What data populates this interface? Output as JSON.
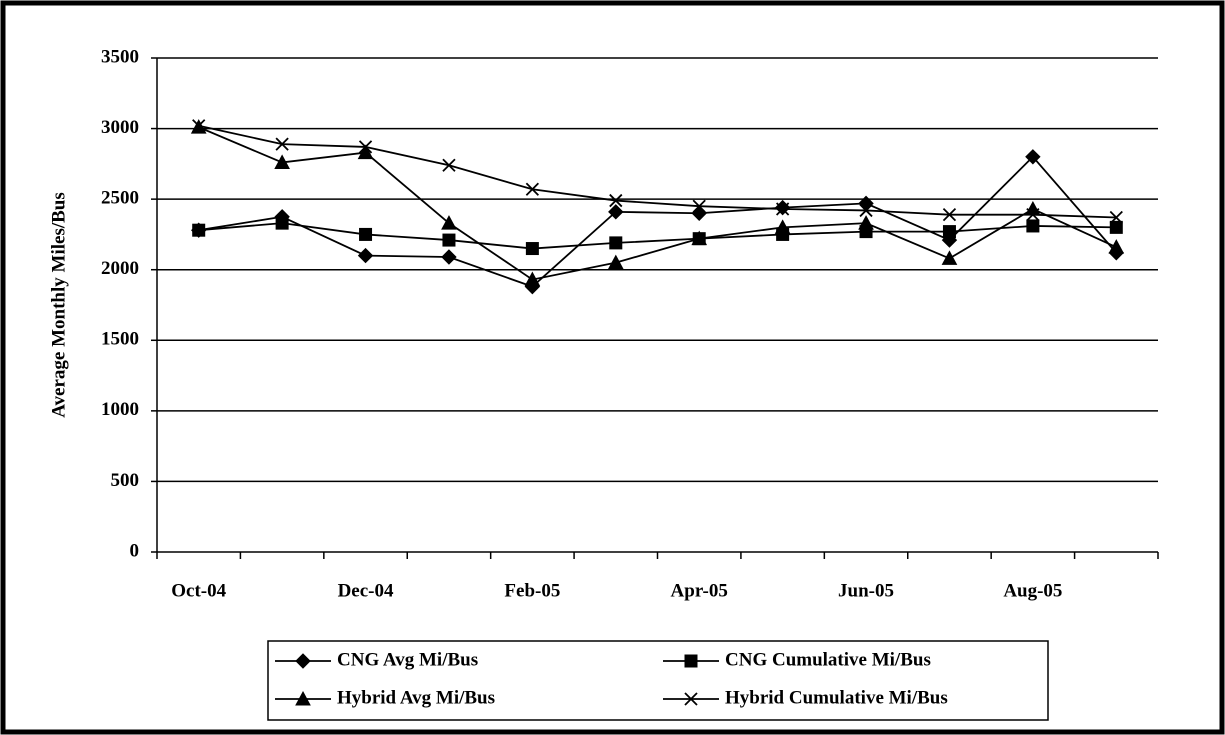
{
  "chart_data": {
    "type": "line",
    "y_label": "Average Monthly Miles/Bus",
    "categories": [
      "Oct-04",
      null,
      "Dec-04",
      null,
      "Feb-05",
      null,
      "Apr-05",
      null,
      "Jun-05",
      null,
      "Aug-05",
      null
    ],
    "ylim": [
      0,
      3500
    ],
    "yticks": [
      0,
      500,
      1000,
      1500,
      2000,
      2500,
      3000,
      3500
    ],
    "grid": true,
    "series": [
      {
        "name": "CNG Avg Mi/Bus",
        "color": "#000000",
        "marker": "diamond",
        "values": [
          2280,
          2375,
          2100,
          2090,
          1880,
          2410,
          2400,
          2440,
          2470,
          2210,
          2800,
          2120
        ]
      },
      {
        "name": "CNG Cumulative Mi/Bus",
        "color": "#000000",
        "marker": "square",
        "values": [
          2280,
          2330,
          2250,
          2210,
          2150,
          2190,
          2220,
          2250,
          2270,
          2270,
          2310,
          2300
        ]
      },
      {
        "name": "Hybrid Avg Mi/Bus",
        "color": "#000000",
        "marker": "triangle",
        "values": [
          3010,
          2760,
          2830,
          2330,
          1930,
          2050,
          2220,
          2300,
          2330,
          2080,
          2430,
          2160
        ]
      },
      {
        "name": "Hybrid Cumulative Mi/Bus",
        "color": "#000000",
        "marker": "x",
        "values": [
          3020,
          2890,
          2870,
          2740,
          2570,
          2490,
          2450,
          2430,
          2420,
          2390,
          2390,
          2370
        ]
      }
    ]
  }
}
